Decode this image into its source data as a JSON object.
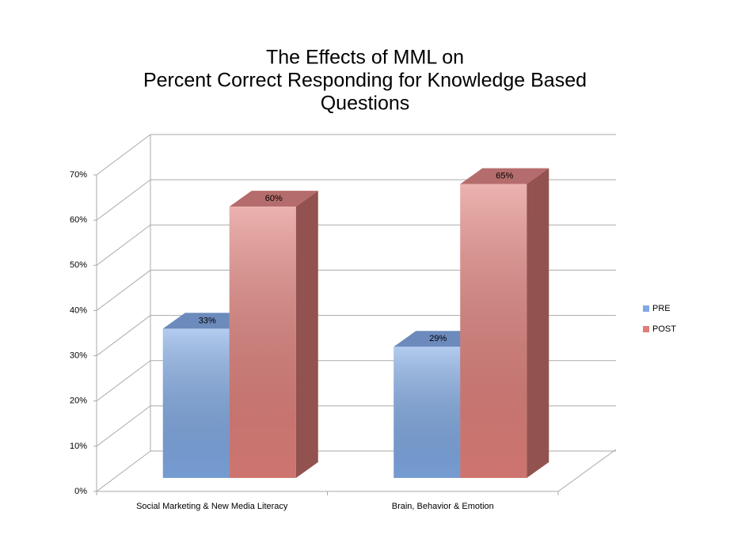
{
  "chart_data": {
    "type": "bar3d",
    "title": [
      "The Effects of MML on",
      "Percent Correct Responding for Knowledge Based",
      "Questions"
    ],
    "categories": [
      "Social Marketing & New Media Literacy",
      "Brain, Behavior & Emotion"
    ],
    "series": [
      {
        "name": "PRE",
        "color": "#7fa9e4",
        "values": [
          33,
          29
        ],
        "value_labels": [
          "33%",
          "29%"
        ]
      },
      {
        "name": "POST",
        "color": "#e07f7a",
        "values": [
          60,
          65
        ],
        "value_labels": [
          "60%",
          "65%"
        ]
      }
    ],
    "ylim": [
      0,
      70
    ],
    "yticks": [
      {
        "value": 0,
        "label": "0%"
      },
      {
        "value": 10,
        "label": "10%"
      },
      {
        "value": 20,
        "label": "20%"
      },
      {
        "value": 30,
        "label": "30%"
      },
      {
        "value": 40,
        "label": "40%"
      },
      {
        "value": 50,
        "label": "50%"
      },
      {
        "value": 60,
        "label": "60%"
      },
      {
        "value": 70,
        "label": "70%"
      }
    ],
    "grid": true,
    "legend": "right"
  }
}
